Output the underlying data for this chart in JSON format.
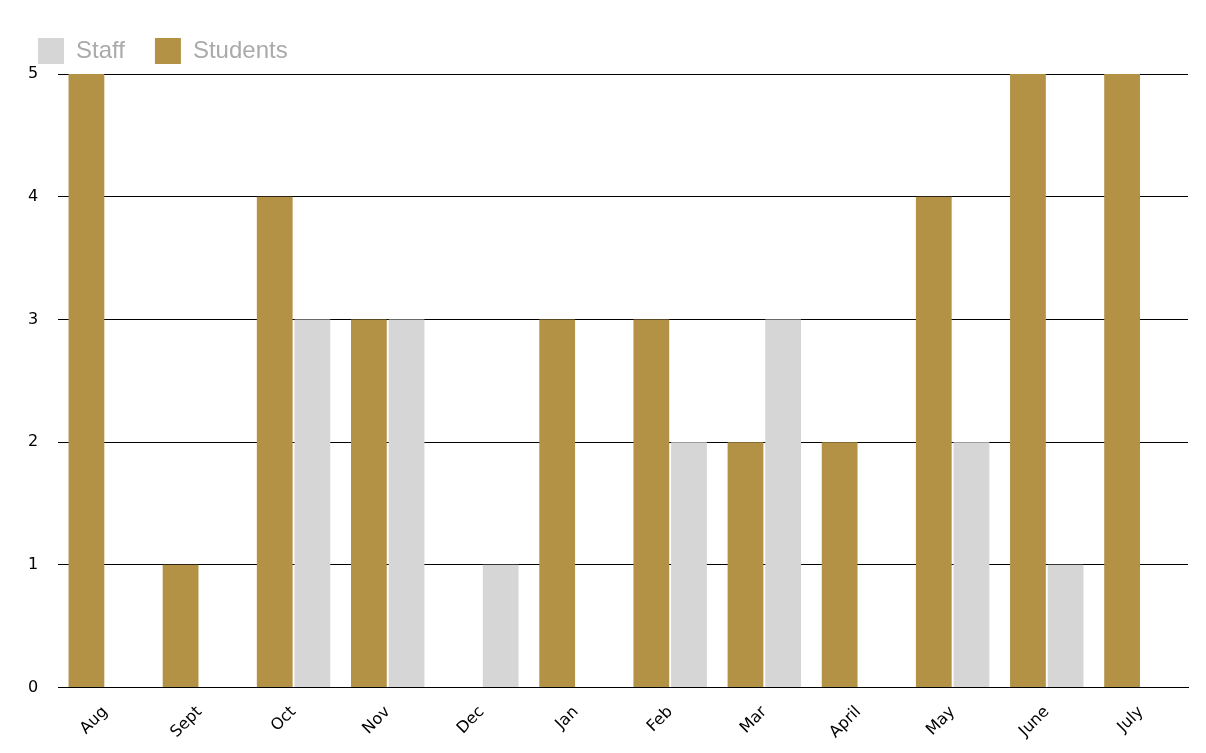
{
  "chart_data": {
    "type": "bar",
    "categories": [
      "Aug",
      "Sept",
      "Oct",
      "Nov",
      "Dec",
      "Jan",
      "Feb",
      "Mar",
      "April",
      "May",
      "June",
      "July"
    ],
    "series": [
      {
        "name": "Students",
        "color": "#b39245",
        "values": [
          5,
          1,
          4,
          3,
          0,
          3,
          3,
          2,
          2,
          4,
          5,
          5
        ]
      },
      {
        "name": "Staff",
        "color": "#d6d6d6",
        "values": [
          0,
          0,
          3,
          3,
          1,
          0,
          2,
          3,
          0,
          2,
          1,
          0
        ]
      }
    ],
    "ylim": [
      0,
      5
    ],
    "yticks": [
      0,
      1,
      2,
      3,
      4,
      5
    ],
    "grid": "y",
    "legend": "top left"
  }
}
